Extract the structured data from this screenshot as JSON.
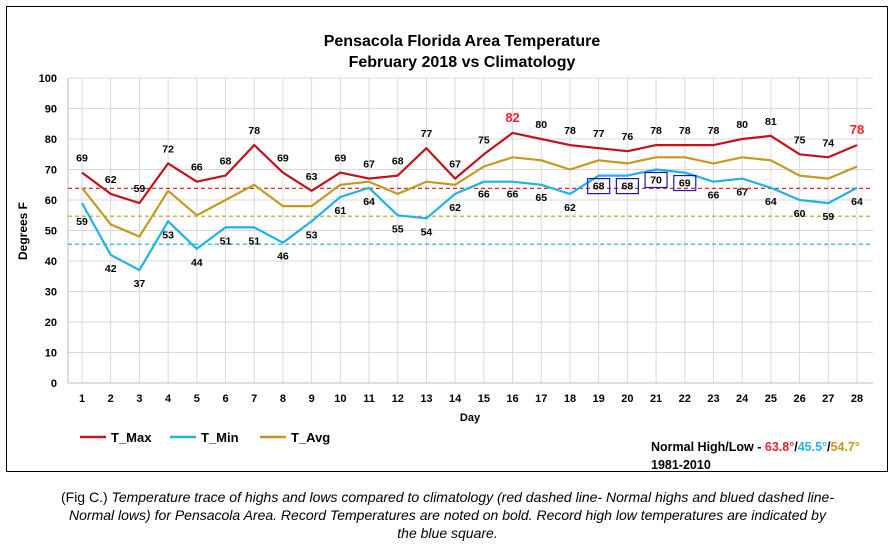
{
  "chart_data": {
    "type": "line",
    "title": "Pensacola Florida Area Temperature",
    "subtitle": "February 2018 vs Climatology",
    "xlabel": "Day",
    "ylabel": "Degrees F",
    "ylim": [
      0,
      100
    ],
    "yticks": [
      0,
      10,
      20,
      30,
      40,
      50,
      60,
      70,
      80,
      90,
      100
    ],
    "x": [
      1,
      2,
      3,
      4,
      5,
      6,
      7,
      8,
      9,
      10,
      11,
      12,
      13,
      14,
      15,
      16,
      17,
      18,
      19,
      20,
      21,
      22,
      23,
      24,
      25,
      26,
      27,
      28
    ],
    "grid": true,
    "legend_position": "bottom-left",
    "series": [
      {
        "name": "T_Max",
        "color": "#c0141c",
        "values": [
          69,
          62,
          59,
          72,
          66,
          68,
          78,
          69,
          63,
          69,
          67,
          68,
          77,
          67,
          75,
          82,
          80,
          78,
          77,
          76,
          78,
          78,
          78,
          80,
          81,
          75,
          74,
          78
        ]
      },
      {
        "name": "T_Min",
        "color": "#1fb2e6",
        "values": [
          59,
          42,
          37,
          53,
          44,
          51,
          51,
          46,
          53,
          61,
          64,
          55,
          54,
          62,
          66,
          66,
          65,
          62,
          68,
          68,
          70,
          69,
          66,
          67,
          64,
          60,
          59,
          64
        ]
      },
      {
        "name": "T_Avg",
        "color": "#c49a1e",
        "values": [
          64,
          52,
          48,
          63,
          55,
          60,
          65,
          58,
          58,
          65,
          66,
          62,
          66,
          65,
          71,
          74,
          73,
          70,
          73,
          72,
          74,
          74,
          72,
          74,
          73,
          68,
          67,
          71
        ]
      }
    ],
    "reference_lines": [
      {
        "value": 63.8,
        "color": "#e3262b"
      },
      {
        "value": 45.5,
        "color": "#27b6e8"
      },
      {
        "value": 54.7,
        "color": "#c49a1e"
      }
    ],
    "record_highs": [
      16,
      28
    ],
    "record_high_color": "#e3262b",
    "record_high_lows": [
      19,
      20,
      21,
      22
    ],
    "record_box_color": "#1a1aa8"
  },
  "normals": {
    "label": "Normal High/Low - ",
    "high": "63.8°",
    "sep1": "/",
    "low": "45.5°",
    "sep2": "/",
    "avg": "54.7°",
    "period": "1981-2010"
  },
  "caption": {
    "prefix": "(Fig C.) ",
    "text": "Temperature trace of highs and lows compared to climatology (red dashed line- Normal highs and blued dashed line- Normal lows) for Pensacola Area. Record Temperatures are noted on bold. Record high low temperatures are indicated by the blue square."
  }
}
